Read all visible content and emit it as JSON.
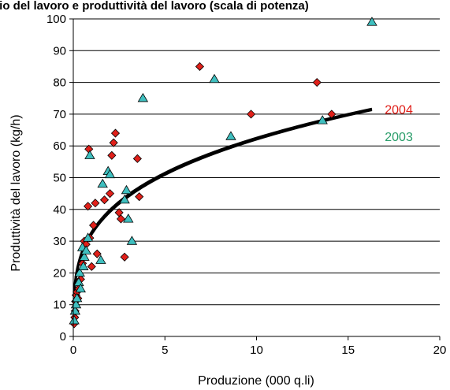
{
  "chart_data": {
    "type": "scatter",
    "title": "gio del lavoro e produttività del lavoro (scala di potenza)",
    "xlabel": "Produzione (000 q.li)",
    "ylabel": "Produttività del lavoro (kg/h)",
    "xlim": [
      0,
      20
    ],
    "ylim": [
      0,
      100
    ],
    "xticks": [
      "0",
      "5",
      "10",
      "15",
      "20"
    ],
    "yticks": [
      "0",
      "10",
      "20",
      "30",
      "40",
      "50",
      "60",
      "70",
      "80",
      "90",
      "100"
    ],
    "grid": "horizontal",
    "series": [
      {
        "name": "2004",
        "marker": "diamond",
        "color": "#e0201a",
        "label_position": [
          17.0,
          71.6
        ],
        "points": [
          [
            0.05,
            4
          ],
          [
            0.08,
            6
          ],
          [
            0.1,
            8
          ],
          [
            0.12,
            11
          ],
          [
            0.15,
            13
          ],
          [
            0.2,
            14
          ],
          [
            0.25,
            12
          ],
          [
            0.3,
            15
          ],
          [
            0.4,
            18
          ],
          [
            0.5,
            23
          ],
          [
            0.6,
            30
          ],
          [
            0.7,
            29
          ],
          [
            0.8,
            41
          ],
          [
            0.85,
            59
          ],
          [
            0.9,
            31
          ],
          [
            1.0,
            22
          ],
          [
            1.1,
            35
          ],
          [
            1.2,
            42
          ],
          [
            1.3,
            26
          ],
          [
            1.7,
            43
          ],
          [
            2.0,
            45
          ],
          [
            2.1,
            57
          ],
          [
            2.2,
            61
          ],
          [
            2.3,
            64
          ],
          [
            2.5,
            39
          ],
          [
            2.6,
            37
          ],
          [
            2.8,
            25
          ],
          [
            3.5,
            56
          ],
          [
            3.6,
            44
          ],
          [
            6.9,
            85
          ],
          [
            9.7,
            70
          ],
          [
            13.3,
            80
          ],
          [
            14.1,
            70
          ]
        ]
      },
      {
        "name": "2003",
        "marker": "triangle",
        "color": "#3fbfbf",
        "label_position": [
          17.0,
          63.0
        ],
        "points": [
          [
            0.05,
            5
          ],
          [
            0.1,
            8
          ],
          [
            0.15,
            10
          ],
          [
            0.2,
            12
          ],
          [
            0.3,
            17
          ],
          [
            0.35,
            20
          ],
          [
            0.4,
            15
          ],
          [
            0.5,
            28
          ],
          [
            0.55,
            22
          ],
          [
            0.6,
            25
          ],
          [
            0.7,
            27
          ],
          [
            0.8,
            31
          ],
          [
            0.9,
            57
          ],
          [
            1.5,
            24
          ],
          [
            1.6,
            48
          ],
          [
            1.9,
            52
          ],
          [
            2.0,
            51
          ],
          [
            2.8,
            43
          ],
          [
            2.9,
            46
          ],
          [
            3.0,
            37
          ],
          [
            3.2,
            30
          ],
          [
            3.8,
            75
          ],
          [
            7.7,
            81
          ],
          [
            8.6,
            63
          ],
          [
            13.6,
            68
          ],
          [
            16.3,
            99
          ]
        ]
      }
    ],
    "trendlines": [
      {
        "name": "2004",
        "type": "power",
        "a": 32.2,
        "b": 0.285,
        "x_range": [
          0.05,
          16.3
        ]
      },
      {
        "name": "2003",
        "type": "power",
        "a": 32.8,
        "b": 0.28,
        "x_range": [
          0.05,
          16.3
        ]
      }
    ]
  },
  "colors": {
    "series_2004": "#e0201a",
    "series_2003": "#3fbfbf",
    "label_2003": "#2a9d6a",
    "trend": "#000000"
  }
}
